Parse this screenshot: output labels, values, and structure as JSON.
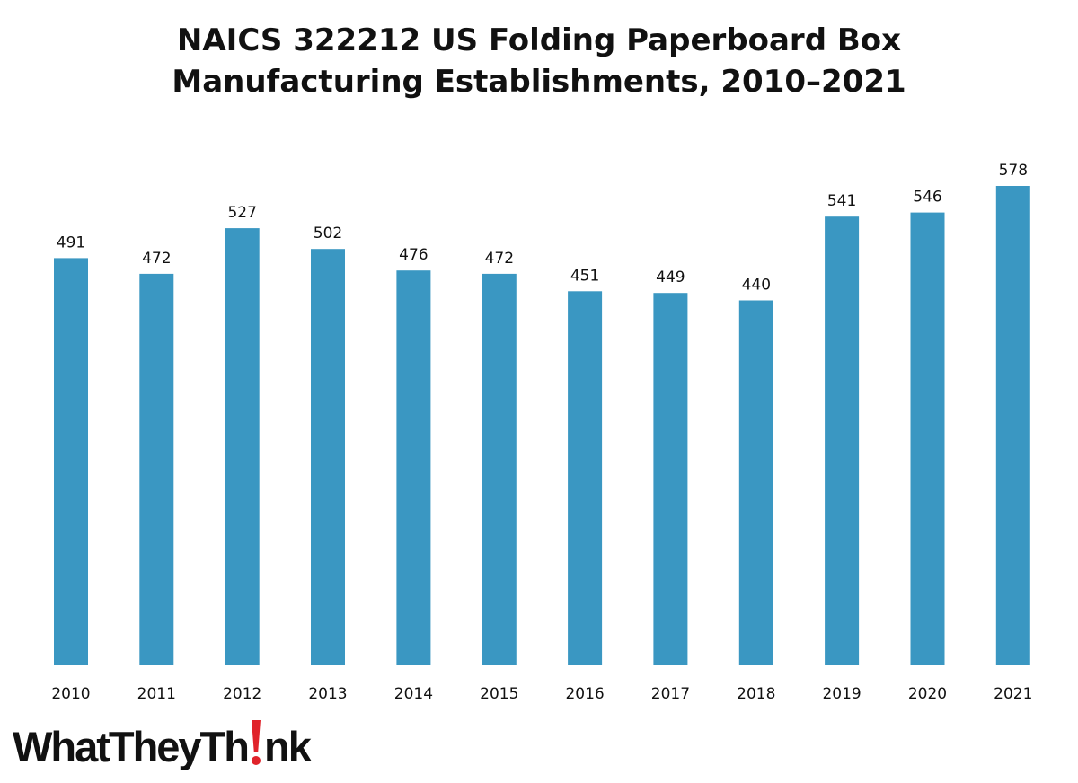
{
  "chart_data": {
    "type": "bar",
    "title_lines": [
      "NAICS 322212 US Folding Paperboard Box",
      "Manufacturing Establishments, 2010–2021"
    ],
    "categories": [
      "2010",
      "2011",
      "2012",
      "2013",
      "2014",
      "2015",
      "2016",
      "2017",
      "2018",
      "2019",
      "2020",
      "2021"
    ],
    "values": [
      491,
      472,
      527,
      502,
      476,
      472,
      451,
      449,
      440,
      541,
      546,
      578
    ],
    "data_labels": [
      "491",
      "472",
      "527",
      "502",
      "476",
      "472",
      "451",
      "449",
      "440",
      "541",
      "546",
      "578"
    ],
    "bar_color": "#3a97c2",
    "ylim": [
      0,
      578
    ],
    "grid": false,
    "legend": "none"
  },
  "logo": {
    "text_before": "WhatTheyTh",
    "text_after": "nk",
    "accent_color": "#e0232a"
  }
}
